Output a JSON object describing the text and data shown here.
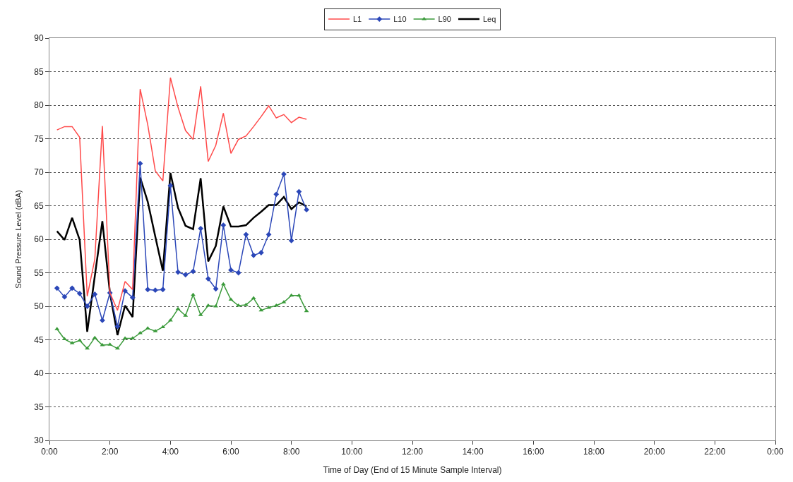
{
  "chart_data": {
    "type": "line",
    "xlabel": "Time of Day (End of 15 Minute Sample Interval)",
    "ylabel": "Sound Pressure Level (dBA)",
    "x": [
      0.25,
      0.5,
      0.75,
      1,
      1.25,
      1.5,
      1.75,
      2,
      2.25,
      2.5,
      2.75,
      3,
      3.25,
      3.5,
      3.75,
      4,
      4.25,
      4.5,
      4.75,
      5,
      5.25,
      5.5,
      5.75,
      6,
      6.25,
      6.5,
      6.75,
      7,
      7.25,
      7.5,
      7.75,
      8,
      8.25,
      8.5
    ],
    "series": [
      {
        "name": "L1",
        "color": "#ff4a4a",
        "marker": "none",
        "values": [
          76.3,
          76.8,
          76.8,
          75.2,
          51.5,
          57,
          76.9,
          52,
          49.4,
          53.7,
          52.5,
          82.4,
          77.1,
          70.2,
          68.7,
          84.1,
          79.7,
          76.2,
          74.9,
          82.8,
          71.6,
          74.0,
          78.8,
          72.8,
          74.9,
          75.4,
          76.8,
          78.3,
          79.9,
          78.1,
          78.6,
          77.4,
          78.2,
          77.9
        ]
      },
      {
        "name": "L10",
        "color": "#2b47b8",
        "marker": "diamond",
        "values": [
          52.7,
          51.4,
          52.7,
          51.9,
          50,
          51.8,
          47.9,
          52.0,
          47,
          52.3,
          51.3,
          71.3,
          52.5,
          52.4,
          52.5,
          68.0,
          55.1,
          54.7,
          55.2,
          61.6,
          54.1,
          52.6,
          62.1,
          55.4,
          55.0,
          60.7,
          57.6,
          58.0,
          60.7,
          66.7,
          69.7,
          59.8,
          67.1,
          64.4
        ]
      },
      {
        "name": "L90",
        "color": "#3a9a3a",
        "marker": "triangle",
        "values": [
          46.6,
          45.1,
          44.5,
          44.9,
          43.7,
          45.3,
          44.2,
          44.3,
          43.7,
          45.2,
          45.2,
          46.0,
          46.7,
          46.3,
          46.9,
          47.9,
          49.6,
          48.6,
          51.7,
          48.7,
          50.1,
          50.0,
          53.3,
          51.0,
          50.1,
          50.2,
          51.2,
          49.4,
          49.8,
          50.1,
          50.6,
          51.6,
          51.6,
          49.3
        ]
      },
      {
        "name": "Leq",
        "color": "#000000",
        "marker": "none",
        "values": [
          61.2,
          59.9,
          63.2,
          59.9,
          46.2,
          54.5,
          62.7,
          52.0,
          45.7,
          50.1,
          48.4,
          69.2,
          65.6,
          60.4,
          55.3,
          69.9,
          64.7,
          62.0,
          61.5,
          69.1,
          56.7,
          59.0,
          64.9,
          61.9,
          61.9,
          62.1,
          63.2,
          64.1,
          65.1,
          65.1,
          66.3,
          64.5,
          65.5,
          64.9
        ]
      }
    ],
    "xlim": [
      0,
      24
    ],
    "xticks": [
      {
        "value": 0,
        "label": "0:00"
      },
      {
        "value": 2,
        "label": "2:00"
      },
      {
        "value": 4,
        "label": "4:00"
      },
      {
        "value": 6,
        "label": "6:00"
      },
      {
        "value": 8,
        "label": "8:00"
      },
      {
        "value": 10,
        "label": "10:00"
      },
      {
        "value": 12,
        "label": "12:00"
      },
      {
        "value": 14,
        "label": "14:00"
      },
      {
        "value": 16,
        "label": "16:00"
      },
      {
        "value": 18,
        "label": "18:00"
      },
      {
        "value": 20,
        "label": "20:00"
      },
      {
        "value": 22,
        "label": "22:00"
      },
      {
        "value": 24,
        "label": "0:00"
      }
    ],
    "ylim": [
      30,
      90
    ],
    "yticks": [
      30,
      35,
      40,
      45,
      50,
      55,
      60,
      65,
      70,
      75,
      80,
      85,
      90
    ],
    "grid": "y",
    "legend": "top",
    "line_style": "solid"
  }
}
